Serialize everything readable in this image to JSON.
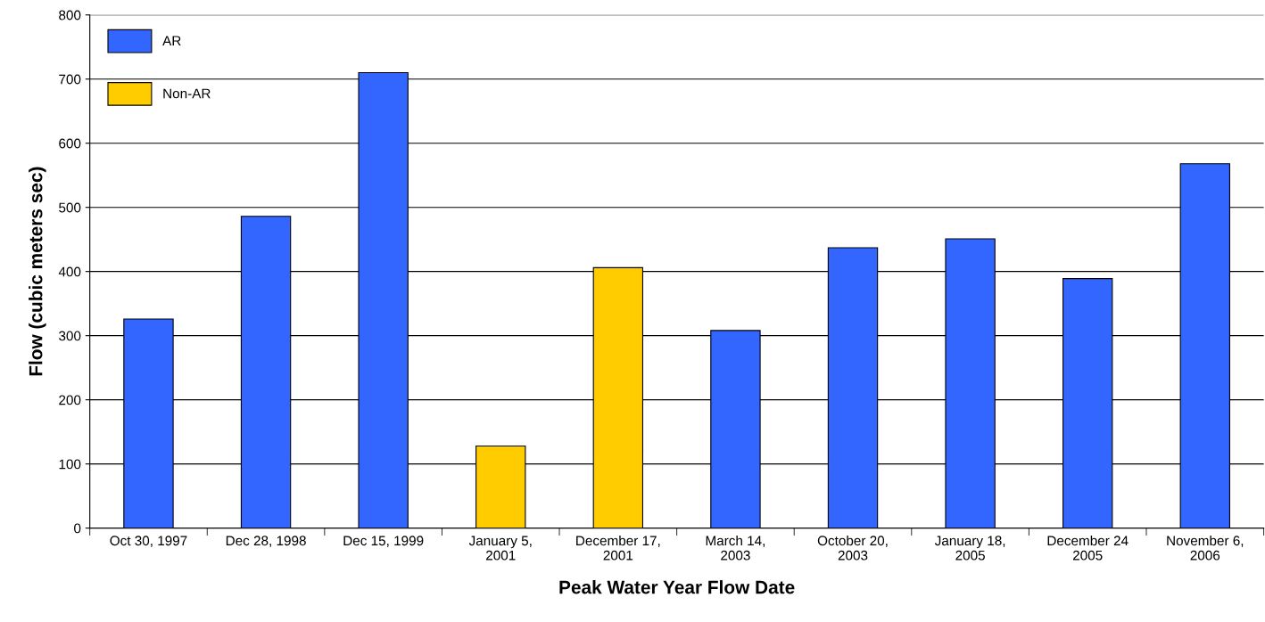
{
  "chart_data": {
    "type": "bar",
    "xlabel": "Peak Water Year Flow Date",
    "ylabel": "Flow (cubic meters sec)",
    "categories": [
      "Oct 30, 1997",
      "Dec 28, 1998",
      "Dec 15, 1999",
      "January 5,\n2001",
      "December 17,\n2001",
      "March 14,\n2003",
      "October 20,\n2003",
      "January 18,\n2005",
      "December 24\n2005",
      "November 6,\n2006"
    ],
    "series": [
      {
        "name": "AR",
        "color": "#3366ff",
        "values": [
          326,
          486,
          710,
          null,
          null,
          308,
          437,
          451,
          389,
          568
        ]
      },
      {
        "name": "Non-AR",
        "color": "#ffcc00",
        "values": [
          null,
          null,
          null,
          128,
          406,
          null,
          null,
          null,
          null,
          null
        ]
      }
    ],
    "ylim": [
      0,
      800
    ],
    "yticks": [
      0,
      100,
      200,
      300,
      400,
      500,
      600,
      700,
      800
    ],
    "grid": "y",
    "legend": "top left"
  }
}
